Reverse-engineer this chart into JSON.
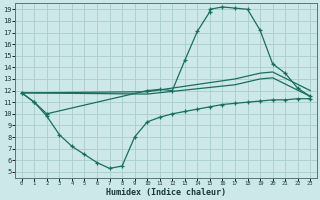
{
  "xlabel": "Humidex (Indice chaleur)",
  "bg_color": "#cce8e8",
  "grid_color": "#aacccc",
  "line_color": "#1a6e60",
  "x_min": -0.5,
  "x_max": 23.5,
  "y_min": 4.5,
  "y_max": 19.5,
  "x_ticks": [
    0,
    1,
    2,
    3,
    4,
    5,
    6,
    7,
    8,
    9,
    10,
    11,
    12,
    13,
    14,
    15,
    16,
    17,
    18,
    19,
    20,
    21,
    22,
    23
  ],
  "y_ticks": [
    5,
    6,
    7,
    8,
    9,
    10,
    11,
    12,
    13,
    14,
    15,
    16,
    17,
    18,
    19
  ],
  "curve_upper_x": [
    0,
    1,
    2,
    10,
    11,
    12,
    13,
    14,
    15,
    15,
    16,
    17,
    18,
    19,
    20,
    21,
    22,
    23
  ],
  "curve_upper_y": [
    11.8,
    11.0,
    10.0,
    12.0,
    12.1,
    12.0,
    14.6,
    17.1,
    18.8,
    19.0,
    19.2,
    19.1,
    19.0,
    17.2,
    14.3,
    13.5,
    12.2,
    11.5
  ],
  "curve_mid1_x": [
    0,
    10,
    17,
    19,
    20,
    23
  ],
  "curve_mid1_y": [
    11.8,
    11.9,
    13.0,
    13.5,
    13.6,
    12.0
  ],
  "curve_mid2_x": [
    0,
    10,
    17,
    19,
    20,
    23
  ],
  "curve_mid2_y": [
    11.8,
    11.7,
    12.5,
    13.0,
    13.1,
    11.5
  ],
  "curve_lower_x": [
    0,
    1,
    2,
    3,
    4,
    5,
    6,
    7,
    8,
    9,
    10,
    11,
    12,
    13,
    14,
    15,
    16,
    17,
    18,
    19,
    20,
    21,
    22,
    23
  ],
  "curve_lower_y": [
    11.8,
    11.0,
    9.8,
    8.2,
    7.2,
    6.5,
    5.8,
    5.3,
    5.5,
    8.0,
    9.3,
    9.7,
    10.0,
    10.2,
    10.4,
    10.6,
    10.8,
    10.9,
    11.0,
    11.1,
    11.2,
    11.2,
    11.3,
    11.3
  ]
}
